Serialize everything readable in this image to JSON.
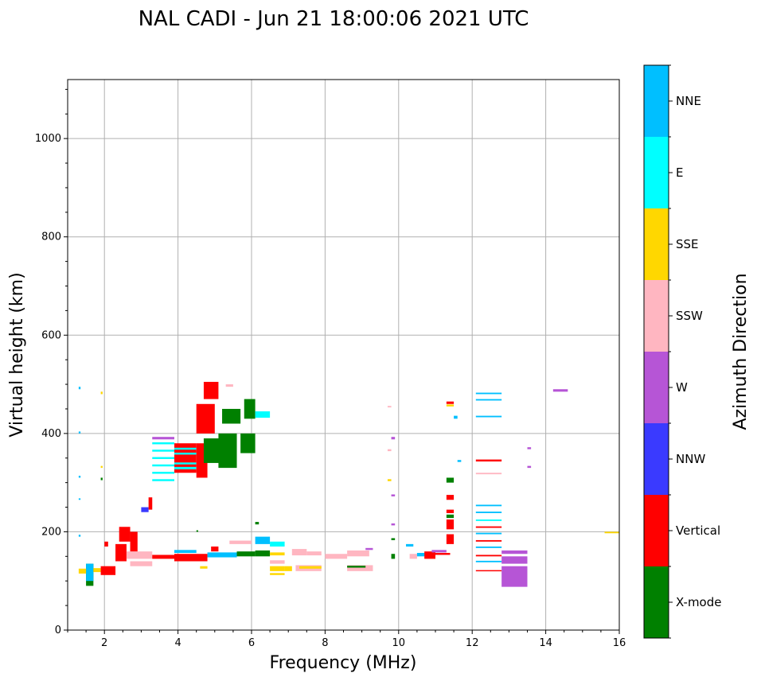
{
  "chart_data": {
    "type": "heatmap",
    "title": "NAL CADI - Jun 21 18:00:06 2021 UTC",
    "xlabel": "Frequency (MHz)",
    "ylabel": "Virtual height (km)",
    "xlim": [
      1,
      16
    ],
    "ylim": [
      0,
      1120
    ],
    "xticks": [
      2,
      4,
      6,
      8,
      10,
      12,
      14,
      16
    ],
    "yticks": [
      0,
      200,
      400,
      600,
      800,
      1000
    ],
    "grid": true,
    "colorbar": {
      "label": "Azimuth Direction",
      "categories": [
        {
          "name": "X-mode",
          "color": "#008000"
        },
        {
          "name": "Vertical",
          "color": "#ff0000"
        },
        {
          "name": "NNW",
          "color": "#3a3aff"
        },
        {
          "name": "W",
          "color": "#b655d6"
        },
        {
          "name": "SSW",
          "color": "#ffb6c1"
        },
        {
          "name": "SSE",
          "color": "#ffd700"
        },
        {
          "name": "E",
          "color": "#00ffff"
        },
        {
          "name": "NNE",
          "color": "#00bfff"
        }
      ]
    },
    "echoes": [
      {
        "f0": 1.5,
        "f1": 1.7,
        "h0": 90,
        "h1": 135,
        "c": "X-mode"
      },
      {
        "f0": 1.5,
        "f1": 1.7,
        "h0": 100,
        "h1": 135,
        "c": "NNE"
      },
      {
        "f0": 1.3,
        "f1": 1.5,
        "h0": 115,
        "h1": 125,
        "c": "SSE"
      },
      {
        "f0": 1.7,
        "f1": 1.9,
        "h0": 118,
        "h1": 126,
        "c": "SSE"
      },
      {
        "f0": 1.9,
        "f1": 2.3,
        "h0": 112,
        "h1": 130,
        "c": "Vertical"
      },
      {
        "f0": 2.0,
        "f1": 2.1,
        "h0": 170,
        "h1": 180,
        "c": "Vertical"
      },
      {
        "f0": 2.3,
        "f1": 2.6,
        "h0": 140,
        "h1": 175,
        "c": "Vertical"
      },
      {
        "f0": 2.4,
        "f1": 2.7,
        "h0": 180,
        "h1": 210,
        "c": "Vertical"
      },
      {
        "f0": 2.6,
        "f1": 3.3,
        "h0": 145,
        "h1": 160,
        "c": "SSW"
      },
      {
        "f0": 2.7,
        "f1": 2.9,
        "h0": 160,
        "h1": 200,
        "c": "Vertical"
      },
      {
        "f0": 2.7,
        "f1": 3.3,
        "h0": 130,
        "h1": 140,
        "c": "SSW"
      },
      {
        "f0": 3.0,
        "f1": 3.2,
        "h0": 240,
        "h1": 250,
        "c": "NNW"
      },
      {
        "f0": 3.2,
        "f1": 3.3,
        "h0": 245,
        "h1": 270,
        "c": "Vertical"
      },
      {
        "f0": 3.3,
        "f1": 4.0,
        "h0": 145,
        "h1": 153,
        "c": "Vertical"
      },
      {
        "f0": 3.3,
        "f1": 3.9,
        "h0": 303,
        "h1": 307,
        "c": "E"
      },
      {
        "f0": 3.3,
        "f1": 3.9,
        "h0": 318,
        "h1": 322,
        "c": "E"
      },
      {
        "f0": 3.3,
        "f1": 3.9,
        "h0": 333,
        "h1": 337,
        "c": "E"
      },
      {
        "f0": 3.3,
        "f1": 3.9,
        "h0": 348,
        "h1": 352,
        "c": "E"
      },
      {
        "f0": 3.3,
        "f1": 3.9,
        "h0": 363,
        "h1": 367,
        "c": "E"
      },
      {
        "f0": 3.3,
        "f1": 3.9,
        "h0": 378,
        "h1": 382,
        "c": "E"
      },
      {
        "f0": 3.3,
        "f1": 3.9,
        "h0": 388,
        "h1": 393,
        "c": "W"
      },
      {
        "f0": 3.9,
        "f1": 4.5,
        "h0": 320,
        "h1": 380,
        "c": "Vertical"
      },
      {
        "f0": 3.9,
        "f1": 4.5,
        "h0": 327,
        "h1": 332,
        "c": "E"
      },
      {
        "f0": 3.9,
        "f1": 4.5,
        "h0": 337,
        "h1": 341,
        "c": "E"
      },
      {
        "f0": 3.9,
        "f1": 4.5,
        "h0": 357,
        "h1": 361,
        "c": "E"
      },
      {
        "f0": 3.9,
        "f1": 4.5,
        "h0": 367,
        "h1": 371,
        "c": "E"
      },
      {
        "f0": 4.5,
        "f1": 4.8,
        "h0": 310,
        "h1": 380,
        "c": "Vertical"
      },
      {
        "f0": 4.7,
        "f1": 5.2,
        "h0": 340,
        "h1": 390,
        "c": "X-mode"
      },
      {
        "f0": 5.1,
        "f1": 5.6,
        "h0": 330,
        "h1": 400,
        "c": "X-mode"
      },
      {
        "f0": 4.5,
        "f1": 5.0,
        "h0": 400,
        "h1": 460,
        "c": "Vertical"
      },
      {
        "f0": 4.7,
        "f1": 5.1,
        "h0": 470,
        "h1": 505,
        "c": "Vertical"
      },
      {
        "f0": 5.2,
        "f1": 5.7,
        "h0": 420,
        "h1": 450,
        "c": "X-mode"
      },
      {
        "f0": 5.7,
        "f1": 6.1,
        "h0": 360,
        "h1": 400,
        "c": "X-mode"
      },
      {
        "f0": 5.8,
        "f1": 6.1,
        "h0": 430,
        "h1": 470,
        "c": "X-mode"
      },
      {
        "f0": 6.1,
        "f1": 6.5,
        "h0": 432,
        "h1": 445,
        "c": "E"
      },
      {
        "f0": 5.3,
        "f1": 5.5,
        "h0": 495,
        "h1": 500,
        "c": "SSW"
      },
      {
        "f0": 3.9,
        "f1": 4.8,
        "h0": 140,
        "h1": 155,
        "c": "Vertical"
      },
      {
        "f0": 3.9,
        "f1": 4.5,
        "h0": 157,
        "h1": 163,
        "c": "NNE"
      },
      {
        "f0": 4.8,
        "f1": 5.6,
        "h0": 148,
        "h1": 158,
        "c": "NNE"
      },
      {
        "f0": 4.9,
        "f1": 5.1,
        "h0": 160,
        "h1": 170,
        "c": "Vertical"
      },
      {
        "f0": 5.6,
        "f1": 6.1,
        "h0": 150,
        "h1": 160,
        "c": "X-mode"
      },
      {
        "f0": 5.4,
        "f1": 6.0,
        "h0": 175,
        "h1": 182,
        "c": "SSW"
      },
      {
        "f0": 6.1,
        "f1": 6.5,
        "h0": 150,
        "h1": 162,
        "c": "X-mode"
      },
      {
        "f0": 6.1,
        "f1": 6.5,
        "h0": 175,
        "h1": 190,
        "c": "NNE"
      },
      {
        "f0": 6.5,
        "f1": 6.9,
        "h0": 170,
        "h1": 180,
        "c": "E"
      },
      {
        "f0": 6.5,
        "f1": 6.9,
        "h0": 152,
        "h1": 158,
        "c": "SSE"
      },
      {
        "f0": 6.5,
        "f1": 6.9,
        "h0": 135,
        "h1": 142,
        "c": "SSW"
      },
      {
        "f0": 6.5,
        "f1": 6.9,
        "h0": 120,
        "h1": 130,
        "c": "SSE"
      },
      {
        "f0": 6.5,
        "f1": 6.9,
        "h0": 112,
        "h1": 116,
        "c": "SSE"
      },
      {
        "f0": 6.9,
        "f1": 7.1,
        "h0": 120,
        "h1": 130,
        "c": "SSE"
      },
      {
        "f0": 7.1,
        "f1": 7.5,
        "h0": 152,
        "h1": 165,
        "c": "SSW"
      },
      {
        "f0": 7.5,
        "f1": 7.9,
        "h0": 152,
        "h1": 160,
        "c": "SSW"
      },
      {
        "f0": 7.2,
        "f1": 7.9,
        "h0": 120,
        "h1": 132,
        "c": "SSW"
      },
      {
        "f0": 7.3,
        "f1": 7.9,
        "h0": 125,
        "h1": 130,
        "c": "SSE"
      },
      {
        "f0": 8.0,
        "f1": 8.6,
        "h0": 145,
        "h1": 155,
        "c": "SSW"
      },
      {
        "f0": 8.6,
        "f1": 9.2,
        "h0": 150,
        "h1": 162,
        "c": "SSW"
      },
      {
        "f0": 8.6,
        "f1": 9.3,
        "h0": 120,
        "h1": 132,
        "c": "SSW"
      },
      {
        "f0": 8.6,
        "f1": 9.1,
        "h0": 127,
        "h1": 131,
        "c": "X-mode"
      },
      {
        "f0": 9.1,
        "f1": 9.3,
        "h0": 163,
        "h1": 167,
        "c": "W"
      },
      {
        "f0": 9.8,
        "f1": 9.9,
        "h0": 145,
        "h1": 155,
        "c": "X-mode"
      },
      {
        "f0": 10.3,
        "f1": 10.5,
        "h0": 145,
        "h1": 155,
        "c": "SSW"
      },
      {
        "f0": 10.2,
        "f1": 10.4,
        "h0": 170,
        "h1": 175,
        "c": "NNE"
      },
      {
        "f0": 10.5,
        "f1": 10.8,
        "h0": 150,
        "h1": 157,
        "c": "NNE"
      },
      {
        "f0": 10.7,
        "f1": 11.0,
        "h0": 145,
        "h1": 160,
        "c": "Vertical"
      },
      {
        "f0": 10.9,
        "f1": 11.3,
        "h0": 158,
        "h1": 163,
        "c": "W"
      },
      {
        "f0": 11.0,
        "f1": 11.4,
        "h0": 153,
        "h1": 157,
        "c": "Vertical"
      },
      {
        "f0": 11.3,
        "f1": 11.5,
        "h0": 175,
        "h1": 195,
        "c": "Vertical"
      },
      {
        "f0": 11.3,
        "f1": 11.5,
        "h0": 205,
        "h1": 225,
        "c": "Vertical"
      },
      {
        "f0": 11.3,
        "f1": 11.5,
        "h0": 228,
        "h1": 235,
        "c": "X-mode"
      },
      {
        "f0": 11.3,
        "f1": 11.5,
        "h0": 238,
        "h1": 245,
        "c": "Vertical"
      },
      {
        "f0": 11.3,
        "f1": 11.5,
        "h0": 265,
        "h1": 275,
        "c": "Vertical"
      },
      {
        "f0": 11.3,
        "f1": 11.5,
        "h0": 300,
        "h1": 310,
        "c": "X-mode"
      },
      {
        "f0": 11.3,
        "f1": 11.5,
        "h0": 460,
        "h1": 465,
        "c": "Vertical"
      },
      {
        "f0": 11.3,
        "f1": 11.5,
        "h0": 455,
        "h1": 459,
        "c": "SSE"
      },
      {
        "f0": 11.5,
        "f1": 11.6,
        "h0": 430,
        "h1": 436,
        "c": "NNE"
      },
      {
        "f0": 11.6,
        "f1": 11.7,
        "h0": 342,
        "h1": 346,
        "c": "NNE"
      },
      {
        "f0": 12.1,
        "f1": 12.8,
        "h0": 120,
        "h1": 122,
        "c": "Vertical"
      },
      {
        "f0": 12.1,
        "f1": 12.8,
        "h0": 138,
        "h1": 141,
        "c": "NNE"
      },
      {
        "f0": 12.1,
        "f1": 12.8,
        "h0": 150,
        "h1": 153,
        "c": "Vertical"
      },
      {
        "f0": 12.1,
        "f1": 12.8,
        "h0": 167,
        "h1": 170,
        "c": "NNE"
      },
      {
        "f0": 12.1,
        "f1": 12.8,
        "h0": 180,
        "h1": 183,
        "c": "Vertical"
      },
      {
        "f0": 12.1,
        "f1": 12.8,
        "h0": 195,
        "h1": 198,
        "c": "NNE"
      },
      {
        "f0": 12.1,
        "f1": 12.8,
        "h0": 208,
        "h1": 211,
        "c": "Vertical"
      },
      {
        "f0": 12.1,
        "f1": 12.8,
        "h0": 222,
        "h1": 225,
        "c": "E"
      },
      {
        "f0": 12.1,
        "f1": 12.8,
        "h0": 238,
        "h1": 241,
        "c": "NNE"
      },
      {
        "f0": 12.1,
        "f1": 12.8,
        "h0": 252,
        "h1": 255,
        "c": "NNE"
      },
      {
        "f0": 12.1,
        "f1": 12.8,
        "h0": 317,
        "h1": 320,
        "c": "SSW"
      },
      {
        "f0": 12.1,
        "f1": 12.8,
        "h0": 343,
        "h1": 347,
        "c": "Vertical"
      },
      {
        "f0": 12.1,
        "f1": 12.8,
        "h0": 433,
        "h1": 436,
        "c": "NNE"
      },
      {
        "f0": 12.1,
        "f1": 12.8,
        "h0": 467,
        "h1": 470,
        "c": "NNE"
      },
      {
        "f0": 12.1,
        "f1": 12.8,
        "h0": 480,
        "h1": 483,
        "c": "NNE"
      },
      {
        "f0": 12.8,
        "f1": 13.5,
        "h0": 88,
        "h1": 130,
        "c": "W"
      },
      {
        "f0": 12.8,
        "f1": 13.5,
        "h0": 135,
        "h1": 150,
        "c": "W"
      },
      {
        "f0": 12.8,
        "f1": 13.5,
        "h0": 155,
        "h1": 162,
        "c": "W"
      },
      {
        "f0": 14.2,
        "f1": 14.6,
        "h0": 485,
        "h1": 490,
        "c": "W"
      },
      {
        "f0": 13.5,
        "f1": 13.6,
        "h0": 330,
        "h1": 334,
        "c": "W"
      },
      {
        "f0": 13.5,
        "f1": 13.6,
        "h0": 368,
        "h1": 372,
        "c": "W"
      },
      {
        "f0": 9.8,
        "f1": 9.9,
        "h0": 388,
        "h1": 393,
        "c": "W"
      },
      {
        "f0": 9.8,
        "f1": 9.9,
        "h0": 272,
        "h1": 276,
        "c": "W"
      },
      {
        "f0": 9.8,
        "f1": 9.9,
        "h0": 213,
        "h1": 217,
        "c": "W"
      },
      {
        "f0": 9.7,
        "f1": 9.8,
        "h0": 453,
        "h1": 456,
        "c": "SSW"
      },
      {
        "f0": 9.7,
        "f1": 9.8,
        "h0": 303,
        "h1": 307,
        "c": "SSE"
      },
      {
        "f0": 9.7,
        "f1": 9.8,
        "h0": 364,
        "h1": 368,
        "c": "SSW"
      },
      {
        "f0": 9.8,
        "f1": 9.9,
        "h0": 183,
        "h1": 187,
        "c": "X-mode"
      },
      {
        "f0": 15.6,
        "f1": 16.0,
        "h0": 197,
        "h1": 200,
        "c": "SSE"
      },
      {
        "f0": 1.3,
        "f1": 1.35,
        "h0": 400,
        "h1": 404,
        "c": "NNE"
      },
      {
        "f0": 1.3,
        "f1": 1.35,
        "h0": 490,
        "h1": 495,
        "c": "NNE"
      },
      {
        "f0": 1.9,
        "f1": 1.95,
        "h0": 480,
        "h1": 485,
        "c": "SSE"
      },
      {
        "f0": 1.9,
        "f1": 1.95,
        "h0": 330,
        "h1": 334,
        "c": "SSE"
      },
      {
        "f0": 1.9,
        "f1": 1.95,
        "h0": 305,
        "h1": 310,
        "c": "X-mode"
      },
      {
        "f0": 1.3,
        "f1": 1.35,
        "h0": 310,
        "h1": 314,
        "c": "NNE"
      },
      {
        "f0": 1.3,
        "f1": 1.35,
        "h0": 265,
        "h1": 268,
        "c": "NNE"
      },
      {
        "f0": 1.3,
        "f1": 1.35,
        "h0": 190,
        "h1": 194,
        "c": "NNE"
      },
      {
        "f0": 6.1,
        "f1": 6.2,
        "h0": 215,
        "h1": 220,
        "c": "X-mode"
      },
      {
        "f0": 4.5,
        "f1": 4.55,
        "h0": 200,
        "h1": 203,
        "c": "X-mode"
      },
      {
        "f0": 4.6,
        "f1": 4.8,
        "h0": 125,
        "h1": 130,
        "c": "SSE"
      }
    ]
  }
}
